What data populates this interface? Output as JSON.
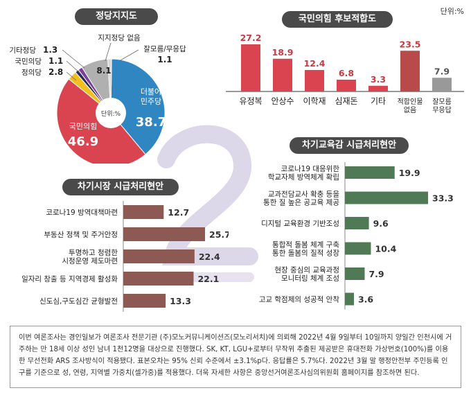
{
  "unit_label": "단위:%",
  "colors": {
    "red": "#d94450",
    "pink_red": "#b84a4a",
    "gray": "#999999",
    "blue": "#2f86c0",
    "yellow": "#f0c020",
    "purple": "#7a3f9a",
    "brown": "#8c5a52",
    "green": "#4f7a55",
    "pill_bg": "#4a4a4a"
  },
  "chart_data": [
    {
      "type": "pie",
      "title": "정당지지도",
      "center_label": "단위:%",
      "slices": [
        {
          "label_lines": [
            "더불어",
            "민주당"
          ],
          "value": 38.7,
          "value_label": "38.7",
          "color": "#2f86c0"
        },
        {
          "label_lines": [
            "국민의힘"
          ],
          "value": 46.9,
          "value_label": "46.9",
          "color": "#d94450"
        },
        {
          "label_lines": [
            "정의당"
          ],
          "value": 2.8,
          "value_label": "2.8",
          "color": "#f0c020"
        },
        {
          "label_lines": [
            "국민의당"
          ],
          "value": 1.1,
          "value_label": "1.1",
          "color": "#2a2a5a"
        },
        {
          "label_lines": [
            "기타정당"
          ],
          "value": 1.3,
          "value_label": "1.3",
          "color": "#7a3f9a"
        },
        {
          "label_lines": [
            "지지정당 없음"
          ],
          "value": 8.1,
          "value_label": "8.1",
          "color": "#b0b0b0"
        },
        {
          "label_lines": [
            "잘모름/무응답"
          ],
          "value": 1.1,
          "value_label": "1.1",
          "color": "#d8d8d8"
        }
      ]
    },
    {
      "type": "bar",
      "title": "국민의힘 후보적합도",
      "categories": [
        [
          "유정복"
        ],
        [
          "안상수"
        ],
        [
          "이학재"
        ],
        [
          "심재돈"
        ],
        [
          "기타"
        ],
        [
          "적합인물",
          "없음"
        ],
        [
          "잘모름",
          "무응답"
        ]
      ],
      "values": [
        27.2,
        18.9,
        12.4,
        6.8,
        3.3,
        23.5,
        7.9
      ],
      "value_labels": [
        "27.2",
        "18.9",
        "12.4",
        "6.8",
        "3.3",
        "23.5",
        "7.9"
      ],
      "colors": [
        "#d94450",
        "#d94450",
        "#d94450",
        "#d94450",
        "#d94450",
        "#b84a4a",
        "#999999"
      ]
    },
    {
      "type": "bar",
      "orientation": "horizontal",
      "title": "차기시장 시급처리현안",
      "categories": [
        [
          "코로나19 방역대책마련"
        ],
        [
          "부동산 정책 및 주거안정"
        ],
        [
          "투명하고 청렴한",
          "시정운영 제도마련"
        ],
        [
          "일자리 창출 등 지역경제 활성화"
        ],
        [
          "신도심,구도심간 균형발전"
        ]
      ],
      "values": [
        12.7,
        25.7,
        22.4,
        22.1,
        13.3
      ],
      "value_labels": [
        "12.7",
        "25.7",
        "22.4",
        "22.1",
        "13.3"
      ],
      "color": "#8c5a52"
    },
    {
      "type": "bar",
      "orientation": "horizontal",
      "title": "차기교육감 시급처리현안",
      "categories": [
        [
          "코로나19 대응위한",
          "학교자체 방역체계 확립"
        ],
        [
          "교과전담교사 확충 등을",
          "통한 질 높은 공교육 제공"
        ],
        [
          "디지털 교육환경 기반조성"
        ],
        [
          "통합적 돌봄 체계 구축",
          "통한 돌봄의 질적 성장"
        ],
        [
          "현장 중심의 교육과정",
          "모니터링 체계 조성"
        ],
        [
          "고교 학점제의 성공적 안착"
        ]
      ],
      "values": [
        19.9,
        33.3,
        9.6,
        10.4,
        7.9,
        3.6
      ],
      "value_labels": [
        "19.9",
        "33.3",
        "9.6",
        "10.4",
        "7.9",
        "3.6"
      ],
      "color": "#4f7a55"
    }
  ],
  "footnote": "이번 여론조사는 경인일보가 여론조사 전문기관 (주)모노커뮤니케이션즈(모노리서치)에 의뢰해 2022년 4월 9일부터 10일까지 양일간 인천시에 거주하는 만 18세 이상 성인 남녀 1천12명을 대상으로 진행했다. SK, KT, LGU+로부터 무작위 추출된 제공받은 휴대전화 가상번호(100%)를 이용한 무선전화 ARS 조사방식이 적용됐다. 표본오차는 95% 신뢰 수준에서 ±3.1%p다. 응답률은 5.7%다. 2022년 3월 말 행정안전부 주민등록 인구를 기준으로 성, 연령, 지역별 가중치(셀가중)를 적용했다. 더욱 자세한 사항은 중앙선거여론조사심의위원회 홈페이지를 참조하면 된다."
}
